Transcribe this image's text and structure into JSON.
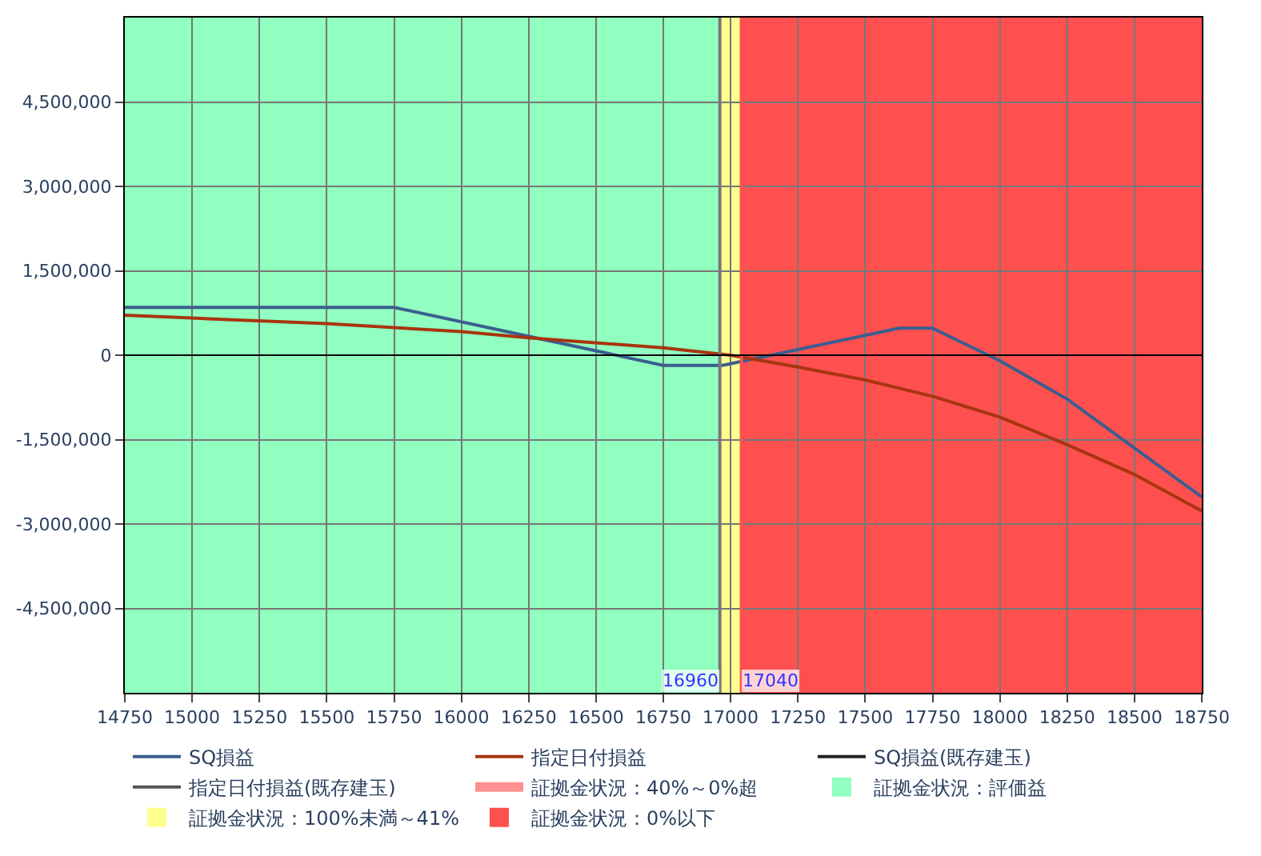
{
  "chart_data": {
    "type": "line",
    "xlim": [
      14750,
      18750
    ],
    "xticks": [
      14750,
      15000,
      15250,
      15500,
      15750,
      16000,
      16250,
      16500,
      16750,
      17000,
      17250,
      17500,
      17750,
      18000,
      18250,
      18500,
      18750
    ],
    "ylim": [
      -6000000,
      6000000
    ],
    "yticks": [
      {
        "value": -4500000,
        "label": "-4,500,000"
      },
      {
        "value": -3000000,
        "label": "-3,000,000"
      },
      {
        "value": -1500000,
        "label": "-1,500,000"
      },
      0,
      {
        "value": 1500000,
        "label": "1,500,000"
      },
      {
        "value": 3000000,
        "label": "3,000,000"
      },
      {
        "value": 4500000,
        "label": "4,500,000"
      }
    ],
    "grid": true,
    "legend": "bottom",
    "marker": "none",
    "line_style": "solid",
    "series": [
      {
        "name": "SQ損益",
        "color": "#3b5e8f",
        "x": [
          14750,
          15750,
          16750,
          16970,
          17250,
          17625,
          17750,
          18000,
          18250,
          18500,
          18750
        ],
        "values": [
          850000,
          850000,
          -180000,
          -180000,
          100000,
          480000,
          480000,
          -100000,
          -780000,
          -1650000,
          -2520000
        ]
      },
      {
        "name": "指定日付損益",
        "color": "#a8350f",
        "x": [
          14750,
          15000,
          15500,
          16000,
          16250,
          16750,
          17000,
          17250,
          17500,
          17750,
          18000,
          18250,
          18500,
          18750
        ],
        "values": [
          710000,
          660000,
          560000,
          420000,
          310000,
          130000,
          0,
          -210000,
          -440000,
          -730000,
          -1100000,
          -1590000,
          -2120000,
          -2770000
        ]
      },
      {
        "name": "SQ損益(既存建玉)",
        "color": "#222222"
      },
      {
        "name": "指定日付損益(既存建玉)",
        "color": "#555555"
      },
      {
        "name": "証拠金状況：40%～0%超",
        "color": "#ff9090",
        "type": "area"
      }
    ],
    "bands": [
      {
        "axis": "x",
        "from": 14750,
        "to": 16960,
        "label": "証拠金状況：評価益",
        "color": "#90ffbf"
      },
      {
        "axis": "x",
        "from": 16960,
        "to": 17040,
        "label": "証拠金状況：100%未満～41%",
        "color": "#ffff90"
      },
      {
        "axis": "x",
        "from": 17040,
        "to": 18750,
        "label": "証拠金状況：0%以下",
        "color": "#ff5050"
      }
    ],
    "ref_lines": [
      {
        "axis": "x",
        "value": 16960,
        "label": "16960",
        "color": "#777777"
      },
      {
        "axis": "x",
        "value": 17040,
        "label": "17040",
        "color": "#ff5050"
      },
      {
        "axis": "y",
        "value": 0,
        "color": "#000000"
      }
    ]
  }
}
